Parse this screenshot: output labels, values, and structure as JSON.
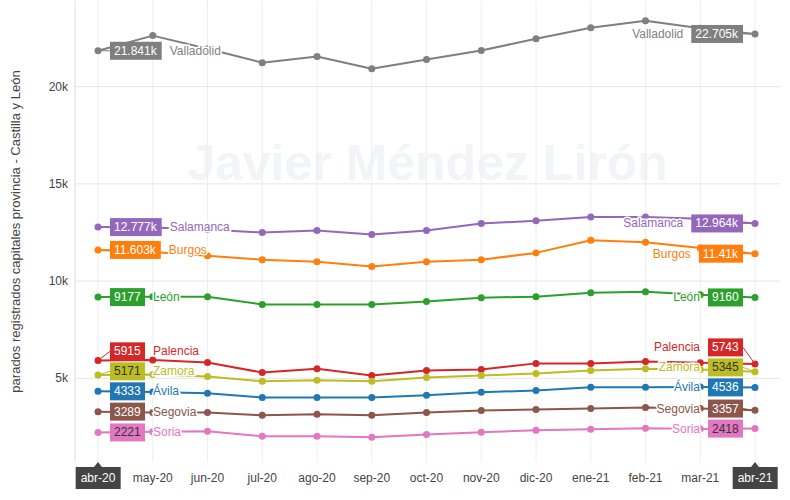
{
  "chart_data": {
    "type": "line",
    "y_label": "parados registrados capitales provincia - Castilla y León",
    "annotations": [
      "Javier Méndez Lirón"
    ],
    "categories": [
      "abr-20",
      "may-20",
      "jun-20",
      "jul-20",
      "ago-20",
      "sep-20",
      "oct-20",
      "nov-20",
      "dic-20",
      "ene-21",
      "feb-21",
      "mar-21",
      "abr-21"
    ],
    "ylim": [
      700,
      24400
    ],
    "yticks": [
      {
        "value": 5000,
        "label": "5k"
      },
      {
        "value": 10000,
        "label": "10k"
      },
      {
        "value": 15000,
        "label": "15k"
      },
      {
        "value": 20000,
        "label": "20k"
      }
    ],
    "grid": true,
    "marker": "circle",
    "series": [
      {
        "name": "Valladolid",
        "color": "#7f7f7f",
        "values": [
          21841,
          22620,
          21950,
          21230,
          21550,
          20920,
          21390,
          21850,
          22460,
          23030,
          23390,
          23000,
          22705
        ],
        "value_labels": [
          "21.841k",
          null,
          null,
          null,
          null,
          null,
          null,
          null,
          null,
          null,
          null,
          null,
          "22.705k"
        ]
      },
      {
        "name": "Salamanca",
        "color": "#9467bd",
        "values": [
          12777,
          12750,
          12650,
          12500,
          12600,
          12400,
          12600,
          12960,
          13100,
          13300,
          13300,
          13200,
          12964
        ],
        "value_labels": [
          "12.777k",
          null,
          null,
          null,
          null,
          null,
          null,
          null,
          null,
          null,
          null,
          null,
          "12.964k"
        ]
      },
      {
        "name": "Burgos",
        "color": "#ff7f0e",
        "values": [
          11603,
          11500,
          11300,
          11100,
          11000,
          10750,
          11000,
          11100,
          11450,
          12100,
          12000,
          11700,
          11410
        ],
        "value_labels": [
          "11.603k",
          null,
          null,
          null,
          null,
          null,
          null,
          null,
          null,
          null,
          null,
          null,
          "11.41k"
        ]
      },
      {
        "name": "León",
        "color": "#2ca02c",
        "values": [
          9177,
          9200,
          9200,
          8800,
          8800,
          8800,
          8950,
          9150,
          9200,
          9400,
          9450,
          9300,
          9160
        ],
        "value_labels": [
          "9177",
          null,
          null,
          null,
          null,
          null,
          null,
          null,
          null,
          null,
          null,
          null,
          "9160"
        ]
      },
      {
        "name": "Palencia",
        "color": "#d62728",
        "values": [
          5915,
          5950,
          5820,
          5300,
          5500,
          5150,
          5400,
          5450,
          5770,
          5770,
          5870,
          5800,
          5743
        ],
        "value_labels": [
          "5915",
          null,
          null,
          null,
          null,
          null,
          null,
          null,
          null,
          null,
          null,
          null,
          "5743"
        ]
      },
      {
        "name": "Zamora",
        "color": "#bcbd22",
        "values": [
          5171,
          5200,
          5100,
          4850,
          4900,
          4850,
          5050,
          5150,
          5250,
          5400,
          5500,
          5450,
          5345
        ],
        "value_labels": [
          "5171",
          null,
          null,
          null,
          null,
          null,
          null,
          null,
          null,
          null,
          null,
          null,
          "5345"
        ]
      },
      {
        "name": "Ávila",
        "color": "#1f77b4",
        "values": [
          4333,
          4300,
          4230,
          4020,
          4020,
          4020,
          4130,
          4280,
          4380,
          4540,
          4540,
          4550,
          4536
        ],
        "value_labels": [
          "4333",
          null,
          null,
          null,
          null,
          null,
          null,
          null,
          null,
          null,
          null,
          null,
          "4536"
        ]
      },
      {
        "name": "Segovia",
        "color": "#8c564b",
        "values": [
          3289,
          3250,
          3250,
          3100,
          3150,
          3100,
          3250,
          3350,
          3400,
          3450,
          3500,
          3450,
          3357
        ],
        "value_labels": [
          "3289",
          null,
          null,
          null,
          null,
          null,
          null,
          null,
          null,
          null,
          null,
          null,
          "3357"
        ]
      },
      {
        "name": "Soria",
        "color": "#e377c2",
        "values": [
          2221,
          2250,
          2280,
          2020,
          2020,
          1970,
          2120,
          2230,
          2330,
          2380,
          2430,
          2400,
          2418
        ],
        "value_labels": [
          "2221",
          null,
          null,
          null,
          null,
          null,
          null,
          null,
          null,
          null,
          null,
          null,
          "2418"
        ]
      }
    ]
  }
}
